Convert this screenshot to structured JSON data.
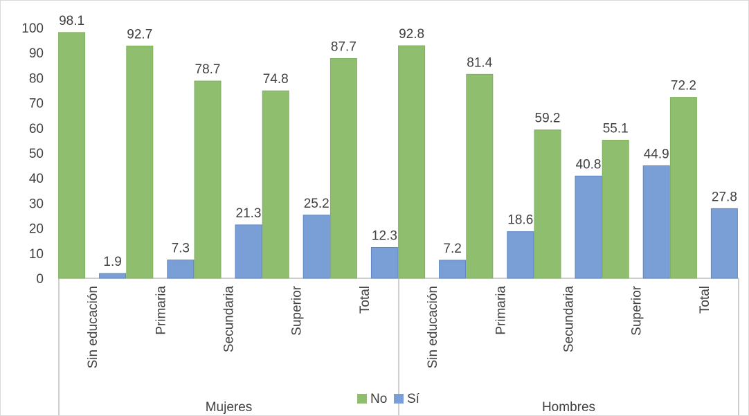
{
  "chart_data": {
    "type": "bar",
    "categories": [
      "Sin educación",
      "Primaria",
      "Secundaria",
      "Superior",
      "Total",
      "Sin educación",
      "Primaria",
      "Secundaria",
      "Superior",
      "Total"
    ],
    "groups": [
      {
        "label": "Mujeres",
        "count": 5
      },
      {
        "label": "Hombres",
        "count": 5
      }
    ],
    "series": [
      {
        "name": "No",
        "color": "#8fbf6e",
        "values": [
          98.1,
          92.7,
          78.7,
          74.8,
          87.7,
          92.8,
          81.4,
          59.2,
          55.1,
          72.2
        ]
      },
      {
        "name": "Sí",
        "color": "#7a9fd6",
        "values": [
          1.9,
          7.3,
          21.3,
          25.2,
          12.3,
          7.2,
          18.6,
          40.8,
          44.9,
          27.8
        ]
      }
    ],
    "ylim": [
      0,
      100
    ],
    "yticks": [
      0,
      10,
      20,
      30,
      40,
      50,
      60,
      70,
      80,
      90,
      100
    ],
    "grid": false,
    "legend": "bottom-center",
    "title": "",
    "xlabel": "",
    "ylabel": ""
  }
}
